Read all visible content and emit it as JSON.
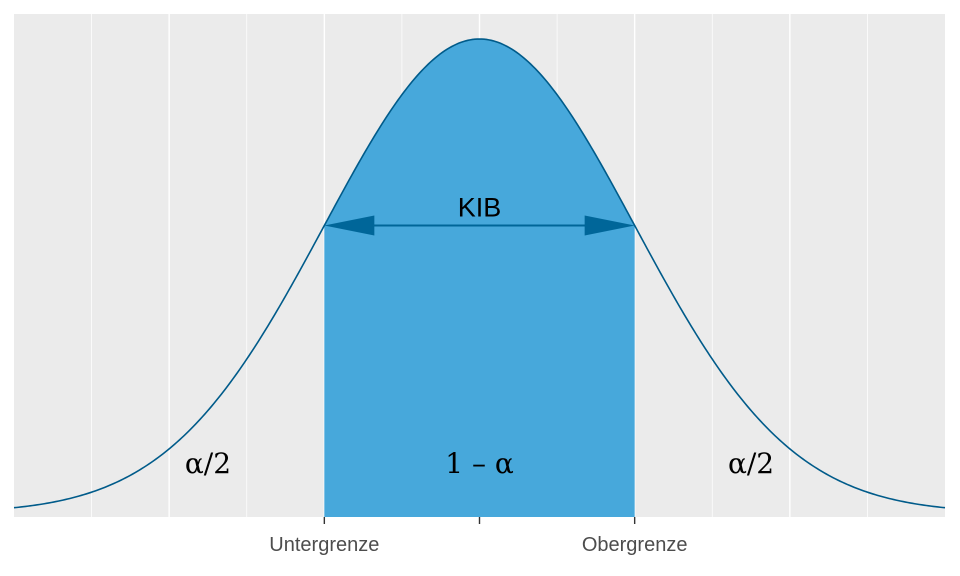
{
  "chart_data": {
    "type": "area",
    "title": "",
    "xlabel": "",
    "ylabel": "",
    "distribution": "normal",
    "mean": 0,
    "sd": 1,
    "xlim": [
      -3,
      3
    ],
    "lower_bound": -1,
    "upper_bound": 1,
    "x_ticks": [
      {
        "value": -1,
        "label": "Untergrenze"
      },
      {
        "value": 0,
        "label": ""
      },
      {
        "value": 1,
        "label": "Obergrenze"
      }
    ],
    "grid": true,
    "annotations": {
      "interval_width": "KIB",
      "left_tail": "α/2",
      "center_area": "1 – α",
      "right_tail": "α/2"
    },
    "colors": {
      "panel_background": "#ebebeb",
      "grid": "#ffffff",
      "fill": "#47a8db",
      "curve": "#005b8a",
      "arrow": "#006699"
    }
  }
}
